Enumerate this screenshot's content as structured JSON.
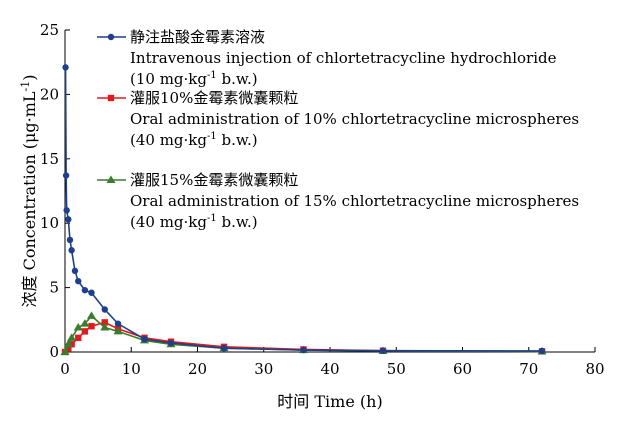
{
  "chart_data": {
    "type": "line",
    "xlabel": "时间 Time (h)",
    "ylabel_prefix": "浓度 Concentration (μg·mL",
    "ylabel_sup": "-1",
    "ylabel_suffix": ")",
    "xlim": [
      0,
      80
    ],
    "ylim": [
      0,
      25
    ],
    "xticks": [
      0,
      10,
      20,
      30,
      40,
      50,
      60,
      70,
      80
    ],
    "yticks": [
      0,
      5,
      10,
      15,
      20,
      25
    ],
    "xtick_labels": [
      "0",
      "10",
      "20",
      "30",
      "40",
      "50",
      "60",
      "70",
      "80"
    ],
    "ytick_labels": [
      "0",
      "5",
      "10",
      "15",
      "20",
      "25"
    ],
    "grid": false,
    "legend_position": "top-left",
    "series": [
      {
        "name": "静注盐酸金霉素溶液",
        "name_en": "Intravenous injection of chlortetracycline hydrochloride",
        "dose_value": "(10 mg·kg",
        "dose_sup": "-1",
        "dose_suffix": " b.w.)",
        "color": "#1f3e8c",
        "marker": "circle",
        "x": [
          0.083,
          0.167,
          0.25,
          0.5,
          0.75,
          1,
          1.5,
          2,
          3,
          4,
          6,
          8,
          12,
          16,
          24,
          36,
          48,
          72
        ],
        "values": [
          22.1,
          13.7,
          11.0,
          10.3,
          8.7,
          7.9,
          6.3,
          5.5,
          4.8,
          4.6,
          3.3,
          2.2,
          1.0,
          0.7,
          0.3,
          0.15,
          0.1,
          0.08
        ]
      },
      {
        "name": "灌服10%金霉素微囊颗粒",
        "name_en": "Oral administration of 10%  chlortetracycline microspheres",
        "dose_value": "(40 mg·kg",
        "dose_sup": "-1",
        "dose_suffix": " b.w.)",
        "color": "#e31a1c",
        "marker": "square",
        "x": [
          0,
          0.5,
          1,
          2,
          3,
          4,
          6,
          8,
          12,
          16,
          24,
          36,
          48,
          72
        ],
        "values": [
          0,
          0.3,
          0.6,
          1.1,
          1.6,
          2.0,
          2.3,
          1.8,
          1.1,
          0.8,
          0.4,
          0.2,
          0.1,
          0.05
        ]
      },
      {
        "name": "灌服15%金霉素微囊颗粒",
        "name_en": "Oral administration of 15%  chlortetracycline microspheres",
        "dose_value": "(40 mg·kg",
        "dose_sup": "-1",
        "dose_suffix": " b.w.)",
        "color": "#3a7d2c",
        "marker": "triangle",
        "x": [
          0,
          0.5,
          1,
          2,
          3,
          4,
          6,
          8,
          12,
          16,
          24,
          36,
          48,
          72
        ],
        "values": [
          0,
          0.6,
          1.1,
          1.9,
          2.2,
          2.8,
          1.9,
          1.6,
          0.9,
          0.6,
          0.3,
          0.15,
          0.08,
          0.04
        ]
      }
    ]
  }
}
